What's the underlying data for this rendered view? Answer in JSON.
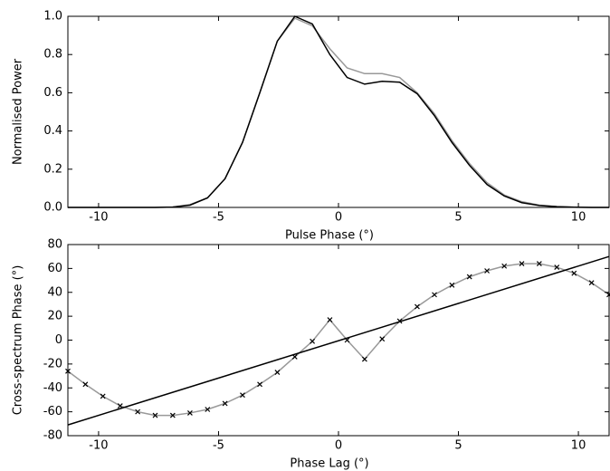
{
  "chart_data": [
    {
      "type": "line",
      "xlabel": "Pulse Phase (°)",
      "ylabel": "Normalised Power",
      "xlim": [
        -11.28,
        11.28
      ],
      "ylim": [
        0,
        1
      ],
      "xticks": [
        -10,
        -5,
        0,
        5,
        10
      ],
      "yticks": [
        {
          "value": 0,
          "label": "0.0"
        },
        {
          "value": 0.2,
          "label": "0.2"
        },
        {
          "value": 0.4,
          "label": "0.4"
        },
        {
          "value": 0.6,
          "label": "0.6"
        },
        {
          "value": 0.8,
          "label": "0.8"
        },
        {
          "value": 1,
          "label": "1.0"
        }
      ],
      "series": [
        {
          "color": "#999999",
          "x": [
            -11.28,
            -10.55,
            -9.82,
            -9.1,
            -8.37,
            -7.64,
            -6.91,
            -6.19,
            -5.46,
            -4.73,
            -4.0,
            -3.28,
            -2.55,
            -1.82,
            -1.09,
            -0.36,
            0.36,
            1.09,
            1.82,
            2.55,
            3.28,
            4.0,
            4.73,
            5.46,
            6.19,
            6.91,
            7.64,
            8.37,
            9.1,
            9.82,
            10.55,
            11.28
          ],
          "values": [
            0,
            0,
            0,
            0,
            0,
            0,
            0.002,
            0.015,
            0.05,
            0.15,
            0.34,
            0.6,
            0.87,
            0.99,
            0.95,
            0.83,
            0.73,
            0.7,
            0.7,
            0.68,
            0.6,
            0.49,
            0.35,
            0.23,
            0.13,
            0.065,
            0.03,
            0.012,
            0.004,
            0.001,
            0,
            0
          ]
        },
        {
          "color": "#000000",
          "x": [
            -11.28,
            -10.55,
            -9.82,
            -9.1,
            -8.37,
            -7.64,
            -6.91,
            -6.19,
            -5.46,
            -4.73,
            -4.0,
            -3.28,
            -2.55,
            -1.82,
            -1.09,
            -0.36,
            0.36,
            1.09,
            1.82,
            2.55,
            3.28,
            4.0,
            4.73,
            5.46,
            6.19,
            6.91,
            7.64,
            8.37,
            9.1,
            9.82,
            10.55,
            11.28
          ],
          "values": [
            0,
            0,
            0,
            0,
            0,
            0,
            0.002,
            0.012,
            0.05,
            0.15,
            0.34,
            0.6,
            0.87,
            1.0,
            0.96,
            0.8,
            0.68,
            0.645,
            0.66,
            0.655,
            0.595,
            0.48,
            0.34,
            0.22,
            0.12,
            0.06,
            0.025,
            0.01,
            0.004,
            0.001,
            0,
            0
          ]
        }
      ]
    },
    {
      "type": "line",
      "xlabel": "Phase Lag (°)",
      "ylabel": "Cross-spectrum Phase (°)",
      "xlim": [
        -11.28,
        11.28
      ],
      "ylim": [
        -80,
        80
      ],
      "xticks": [
        -10,
        -5,
        0,
        5,
        10
      ],
      "yticks": [
        -80,
        -60,
        -40,
        -20,
        0,
        20,
        40,
        60,
        80
      ],
      "series": [
        {
          "color": "#999999",
          "marker": "x",
          "x": [
            -11.28,
            -10.55,
            -9.82,
            -9.1,
            -8.37,
            -7.64,
            -6.91,
            -6.19,
            -5.46,
            -4.73,
            -4.0,
            -3.28,
            -2.55,
            -1.82,
            -1.09,
            -0.36,
            0.36,
            1.09,
            1.82,
            2.55,
            3.28,
            4.0,
            4.73,
            5.46,
            6.19,
            6.91,
            7.64,
            8.37,
            9.1,
            9.82,
            10.55,
            11.28
          ],
          "values": [
            -26,
            -37,
            -47,
            -55,
            -60,
            -63,
            -63,
            -61,
            -58,
            -53,
            -46,
            -37,
            -27,
            -14,
            -1,
            17,
            0,
            -16,
            1,
            16,
            28,
            38,
            46,
            53,
            58,
            62,
            64,
            64,
            61,
            56,
            48,
            38
          ]
        },
        {
          "color": "#000000",
          "x": [
            -11.28,
            11.28
          ],
          "values": [
            -71,
            70
          ]
        }
      ]
    }
  ]
}
